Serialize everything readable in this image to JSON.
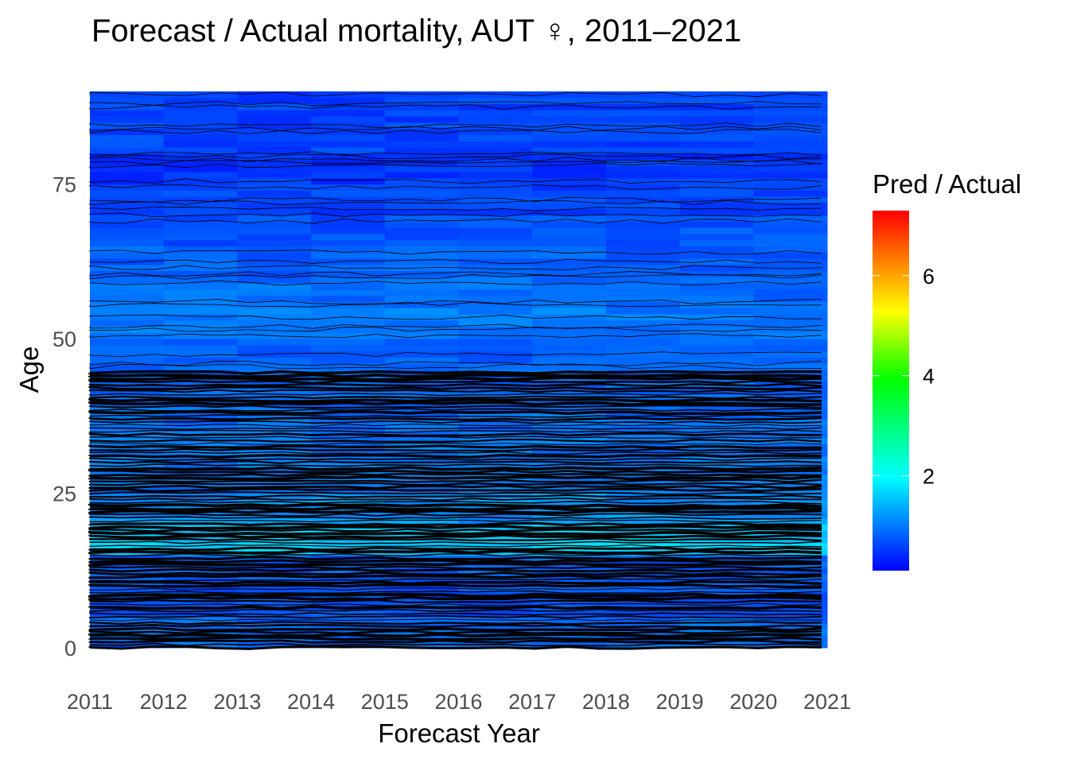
{
  "chart_data": {
    "type": "heatmap",
    "title": "Forecast / Actual mortality, AUT ♀, 2011–2021",
    "xlabel": "Forecast Year",
    "ylabel": "Age",
    "xlim": [
      2011,
      2021
    ],
    "ylim": [
      0,
      90
    ],
    "x_ticks": [
      "2011",
      "2012",
      "2013",
      "2014",
      "2015",
      "2016",
      "2017",
      "2018",
      "2019",
      "2020",
      "2021"
    ],
    "y_ticks": [
      "0",
      "25",
      "50",
      "75"
    ],
    "y_tick_values": [
      0,
      25,
      50,
      75
    ],
    "legend": {
      "title": "Pred / Actual",
      "placement": "right",
      "range": [
        0.1,
        7.3
      ],
      "ticks": [
        "2",
        "4",
        "6"
      ],
      "tick_values": [
        2,
        4,
        6
      ],
      "colors": [
        "#0000FF",
        "#00FFFF",
        "#00FF00",
        "#FFFF00",
        "#FF0000"
      ]
    },
    "contour_lines": true,
    "age_bands": [
      0,
      5,
      10,
      15,
      20,
      25,
      30,
      35,
      40,
      45,
      50,
      55,
      60,
      65,
      70,
      75,
      80,
      85
    ],
    "approx_ratio_by_age_band": [
      0.9,
      0.7,
      0.8,
      1.6,
      1.2,
      1.0,
      1.0,
      0.9,
      0.9,
      0.8,
      1.0,
      0.9,
      0.8,
      0.7,
      0.6,
      0.5,
      0.6,
      0.6
    ]
  }
}
